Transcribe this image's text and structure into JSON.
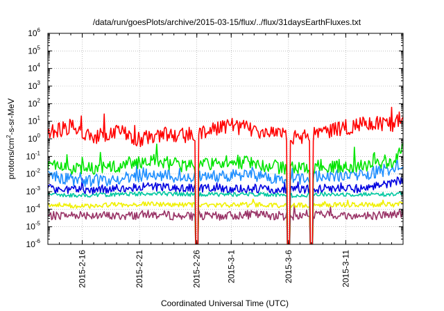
{
  "chart_data": {
    "type": "line",
    "title": "/data/run/goesPlots/archive/2015-03-15/flux/../flux/31daysEarthFluxes.txt",
    "xlabel": "Coordinated Universal Time (UTC)",
    "ylabel": "protons/cm²-s-sr-MeV",
    "ylabel_parts": {
      "pre": "protons/cm",
      "sup": "2",
      "post": "-s-sr-MeV"
    },
    "xlim": [
      "2015-02-13",
      "2015-03-16"
    ],
    "ylim": [
      1e-06,
      1000000.0
    ],
    "yscale": "log",
    "grid": true,
    "legend": "none",
    "x_ticks": [
      "2015-2-16",
      "2015-2-21",
      "2015-2-26",
      "2015-3-1",
      "2015-3-6",
      "2015-3-11"
    ],
    "y_ticks": [
      {
        "base": "10",
        "exp": "-6"
      },
      {
        "base": "10",
        "exp": "-5"
      },
      {
        "base": "10",
        "exp": "-4"
      },
      {
        "base": "10",
        "exp": "-3"
      },
      {
        "base": "10",
        "exp": "-2"
      },
      {
        "base": "10",
        "exp": "-1"
      },
      {
        "base": "10",
        "exp": "0"
      },
      {
        "base": "10",
        "exp": "1"
      },
      {
        "base": "10",
        "exp": "2"
      },
      {
        "base": "10",
        "exp": "3"
      },
      {
        "base": "10",
        "exp": "4"
      },
      {
        "base": "10",
        "exp": "5"
      },
      {
        "base": "10",
        "exp": "6"
      }
    ],
    "dropouts": [
      "2015-02-26",
      "2015-03-06",
      "2015-03-08"
    ],
    "series": [
      {
        "color": "#ff0000",
        "x": [
          "2015-02-13",
          "2015-02-15",
          "2015-02-17",
          "2015-02-19",
          "2015-02-21",
          "2015-02-23",
          "2015-02-25",
          "2015-02-27",
          "2015-03-01",
          "2015-03-03",
          "2015-03-05",
          "2015-03-07",
          "2015-03-09",
          "2015-03-11",
          "2015-03-13",
          "2015-03-15",
          "2015-03-16"
        ],
        "y": [
          2,
          5,
          1,
          3,
          0.8,
          2,
          1.5,
          3,
          6,
          3,
          2,
          1,
          3,
          4,
          8,
          6,
          20
        ],
        "noise": 0.45
      },
      {
        "color": "#00e400",
        "x": [
          "2015-02-13",
          "2015-02-16",
          "2015-02-19",
          "2015-02-22",
          "2015-02-25",
          "2015-02-28",
          "2015-03-03",
          "2015-03-06",
          "2015-03-09",
          "2015-03-12",
          "2015-03-15",
          "2015-03-16"
        ],
        "y": [
          0.03,
          0.02,
          0.03,
          0.06,
          0.03,
          0.05,
          0.04,
          0.02,
          0.03,
          0.03,
          0.05,
          0.4
        ],
        "noise": 0.4
      },
      {
        "color": "#1f8fff",
        "x": [
          "2015-02-13",
          "2015-02-16",
          "2015-02-19",
          "2015-02-22",
          "2015-02-25",
          "2015-02-28",
          "2015-03-03",
          "2015-03-06",
          "2015-03-09",
          "2015-03-12",
          "2015-03-15",
          "2015-03-16"
        ],
        "y": [
          0.008,
          0.004,
          0.005,
          0.01,
          0.006,
          0.008,
          0.008,
          0.005,
          0.008,
          0.008,
          0.02,
          0.05
        ],
        "noise": 0.35
      },
      {
        "color": "#0000e0",
        "x": [
          "2015-02-13",
          "2015-02-16",
          "2015-02-19",
          "2015-02-22",
          "2015-02-25",
          "2015-02-28",
          "2015-03-03",
          "2015-03-06",
          "2015-03-09",
          "2015-03-12",
          "2015-03-15",
          "2015-03-16"
        ],
        "y": [
          0.0015,
          0.0012,
          0.0015,
          0.002,
          0.0015,
          0.0015,
          0.0015,
          0.0012,
          0.0015,
          0.0015,
          0.003,
          0.005
        ],
        "noise": 0.25
      },
      {
        "color": "#00c8a0",
        "x": [
          "2015-02-13",
          "2015-02-16",
          "2015-02-19",
          "2015-02-22",
          "2015-02-25",
          "2015-02-28",
          "2015-03-03",
          "2015-03-06",
          "2015-03-09",
          "2015-03-12",
          "2015-03-15",
          "2015-03-16"
        ],
        "y": [
          0.0007,
          0.0006,
          0.0007,
          0.0008,
          0.0007,
          0.0007,
          0.0007,
          0.0006,
          0.0007,
          0.0007,
          0.0007,
          0.0008
        ],
        "noise": 0.12
      },
      {
        "color": "#f0f000",
        "x": [
          "2015-02-13",
          "2015-02-16",
          "2015-02-19",
          "2015-02-22",
          "2015-02-25",
          "2015-02-28",
          "2015-03-03",
          "2015-03-06",
          "2015-03-09",
          "2015-03-12",
          "2015-03-15",
          "2015-03-16"
        ],
        "y": [
          0.00018,
          0.00015,
          0.00018,
          0.0002,
          0.00018,
          0.00017,
          0.00018,
          0.00016,
          0.00018,
          0.00018,
          0.00018,
          0.0002
        ],
        "noise": 0.14
      },
      {
        "color": "#993366",
        "x": [
          "2015-02-13",
          "2015-02-16",
          "2015-02-19",
          "2015-02-22",
          "2015-02-25",
          "2015-02-28",
          "2015-03-03",
          "2015-03-06",
          "2015-03-09",
          "2015-03-12",
          "2015-03-15",
          "2015-03-16"
        ],
        "y": [
          4e-05,
          5e-05,
          4e-05,
          5e-05,
          4e-05,
          4e-05,
          5e-05,
          4e-05,
          5e-05,
          4e-05,
          5e-05,
          6e-05
        ],
        "noise": 0.25
      }
    ]
  }
}
